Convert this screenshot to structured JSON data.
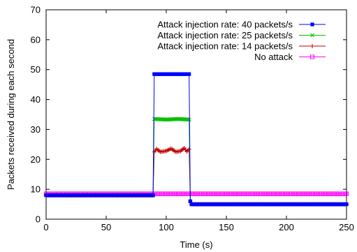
{
  "chart_data": {
    "type": "line",
    "title": "",
    "xlabel": "Time (s)",
    "ylabel": "Packets received during each second",
    "xlim": [
      0,
      250
    ],
    "ylim": [
      0,
      70
    ],
    "xticks": [
      "0",
      "50",
      "100",
      "150",
      "200",
      "250"
    ],
    "yticks": [
      "0",
      "10",
      "20",
      "30",
      "40",
      "50",
      "60",
      "70"
    ],
    "grid": false,
    "legend_position": "top-right",
    "series": [
      {
        "name": "Attack injection rate: 40 packets/s",
        "color": "#0000ff",
        "marker": "filled-square",
        "points": [
          [
            0,
            8
          ],
          [
            89,
            8
          ],
          [
            90,
            48.5
          ],
          [
            100,
            48.5
          ],
          [
            110,
            48.5
          ],
          [
            119,
            48.5
          ],
          [
            120,
            6
          ],
          [
            121,
            5
          ],
          [
            135,
            5
          ],
          [
            200,
            5
          ],
          [
            250,
            5
          ]
        ]
      },
      {
        "name": "Attack injection rate: 25 packets/s",
        "color": "#00c000",
        "marker": "x",
        "points": [
          [
            0,
            8
          ],
          [
            89,
            8
          ],
          [
            90,
            33.5
          ],
          [
            100,
            33.3
          ],
          [
            110,
            33.5
          ],
          [
            119,
            33.3
          ],
          [
            120,
            6
          ],
          [
            121,
            5
          ],
          [
            135,
            5
          ],
          [
            200,
            5
          ],
          [
            250,
            5
          ]
        ]
      },
      {
        "name": "Attack injection rate: 14 packets/s",
        "color": "#c00000",
        "marker": "plus",
        "points": [
          [
            0,
            8
          ],
          [
            89,
            8
          ],
          [
            90,
            22.5
          ],
          [
            92,
            23.5
          ],
          [
            95,
            22.5
          ],
          [
            100,
            22.8
          ],
          [
            104,
            23.6
          ],
          [
            108,
            22.5
          ],
          [
            112,
            22.8
          ],
          [
            115,
            23.8
          ],
          [
            117,
            22.6
          ],
          [
            119,
            23.4
          ],
          [
            120,
            6
          ],
          [
            121,
            5
          ],
          [
            135,
            5
          ],
          [
            200,
            5
          ],
          [
            250,
            5
          ]
        ]
      },
      {
        "name": "No attack",
        "color": "#ff00ff",
        "marker": "open-square",
        "points": [
          [
            0,
            8.5
          ],
          [
            89,
            8.5
          ],
          [
            90,
            8.5
          ],
          [
            120,
            8.5
          ],
          [
            121,
            8.5
          ],
          [
            200,
            8.5
          ],
          [
            250,
            8.5
          ]
        ]
      }
    ]
  }
}
